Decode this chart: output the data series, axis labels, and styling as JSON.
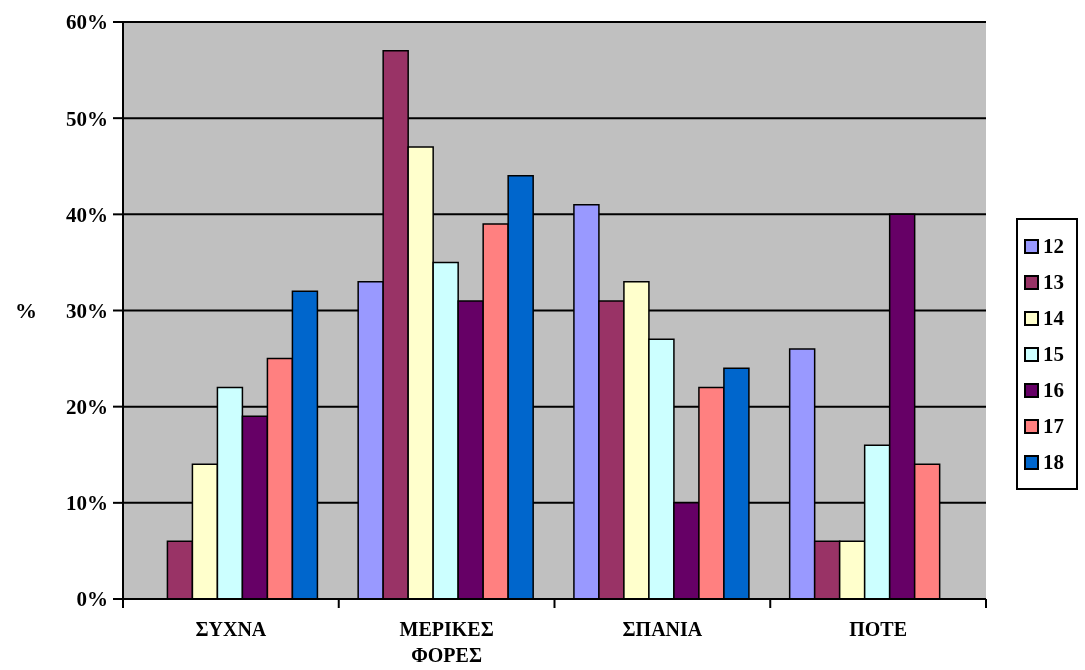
{
  "chart_data": {
    "type": "bar",
    "ylabel": "%",
    "categories": [
      "ΣΥΧΝΑ",
      "ΜΕΡΙΚΕΣ ΦΟΡΕΣ",
      "ΣΠΑΝΙΑ",
      "ΠΟΤΕ"
    ],
    "series": [
      {
        "name": "12",
        "color": "#9999ff",
        "values": [
          0,
          33,
          41,
          26
        ]
      },
      {
        "name": "13",
        "color": "#993366",
        "values": [
          6,
          57,
          31,
          6
        ]
      },
      {
        "name": "14",
        "color": "#ffffcc",
        "values": [
          14,
          47,
          33,
          6
        ]
      },
      {
        "name": "15",
        "color": "#ccffff",
        "values": [
          22,
          35,
          27,
          16
        ]
      },
      {
        "name": "16",
        "color": "#660066",
        "values": [
          19,
          31,
          10,
          40
        ]
      },
      {
        "name": "17",
        "color": "#ff8080",
        "values": [
          25,
          39,
          22,
          14
        ]
      },
      {
        "name": "18",
        "color": "#0066cc",
        "values": [
          32,
          44,
          24,
          0
        ]
      }
    ],
    "ylim": [
      0,
      60
    ],
    "yticks": [
      {
        "value": 0,
        "label": "0%"
      },
      {
        "value": 10,
        "label": "10%"
      },
      {
        "value": 20,
        "label": "20%"
      },
      {
        "value": 30,
        "label": "30%"
      },
      {
        "value": 40,
        "label": "40%"
      },
      {
        "value": 50,
        "label": "50%"
      },
      {
        "value": 60,
        "label": "60%"
      }
    ],
    "grid": "y",
    "legend": "right"
  }
}
